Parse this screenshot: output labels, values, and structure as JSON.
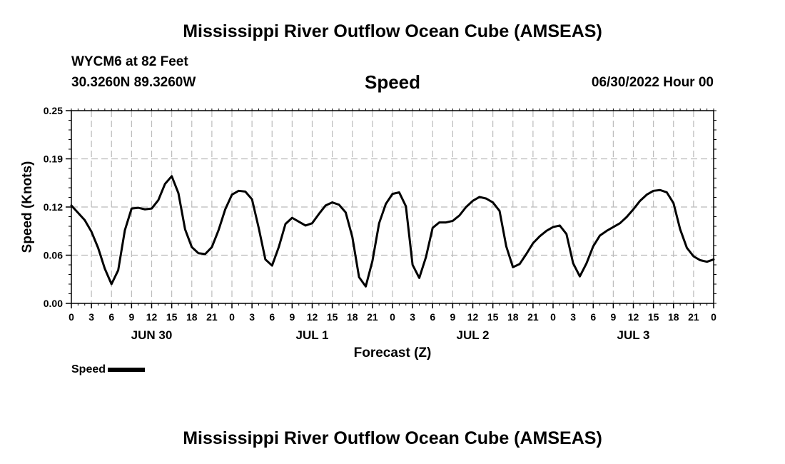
{
  "header": {
    "title": "Mississippi River Outflow Ocean Cube (AMSEAS)",
    "station": "WYCM6 at 82 Feet",
    "coords": "30.3260N  89.3260W",
    "variable": "Speed",
    "date": "06/30/2022 Hour 00"
  },
  "footer": {
    "title": "Mississippi River Outflow Ocean Cube (AMSEAS)"
  },
  "chart_data": {
    "type": "line",
    "xlabel": "Forecast (Z)",
    "ylabel": "Speed (Knots)",
    "ylim": [
      0,
      0.25
    ],
    "y_ticks": [
      "0.00",
      "0.06",
      "0.12",
      "0.19",
      "0.25"
    ],
    "xlim": [
      0,
      96
    ],
    "x_tick_labels": [
      "0",
      "3",
      "6",
      "9",
      "12",
      "15",
      "18",
      "21",
      "0",
      "3",
      "6",
      "9",
      "12",
      "15",
      "18",
      "21",
      "0",
      "3",
      "6",
      "9",
      "12",
      "15",
      "18",
      "21",
      "0",
      "3",
      "6",
      "9",
      "12",
      "15",
      "18",
      "21",
      "0"
    ],
    "day_labels": [
      {
        "label": "JUN 30",
        "hour": 12
      },
      {
        "label": "JUL 1",
        "hour": 36
      },
      {
        "label": "JUL 2",
        "hour": 60
      },
      {
        "label": "JUL 3",
        "hour": 84
      }
    ],
    "grid": true,
    "legend": "bottom-left",
    "series": [
      {
        "name": "Speed",
        "color": "#000000",
        "x": [
          0,
          2,
          3,
          4,
          5,
          6,
          7,
          8,
          9,
          10,
          11,
          12,
          13,
          14,
          15,
          16,
          17,
          18,
          19,
          20,
          21,
          22,
          23,
          24,
          25,
          26,
          27,
          28,
          29,
          30,
          31,
          32,
          33,
          34,
          35,
          36,
          37,
          38,
          39,
          40,
          41,
          42,
          43,
          44,
          45,
          46,
          47,
          48,
          49,
          50,
          51,
          52,
          53,
          54,
          55,
          56,
          57,
          58,
          59,
          60,
          61,
          62,
          63,
          64,
          65,
          66,
          67,
          68,
          69,
          70,
          71,
          72,
          73,
          74,
          75,
          76,
          77,
          78,
          79,
          80,
          81,
          82,
          83,
          84,
          85,
          86,
          87,
          88,
          89,
          90,
          91,
          92,
          93,
          94,
          95,
          96
        ],
        "values": [
          0.127,
          0.108,
          0.093,
          0.072,
          0.045,
          0.025,
          0.043,
          0.095,
          0.123,
          0.124,
          0.122,
          0.123,
          0.134,
          0.155,
          0.165,
          0.143,
          0.096,
          0.073,
          0.065,
          0.064,
          0.073,
          0.095,
          0.122,
          0.141,
          0.146,
          0.145,
          0.135,
          0.098,
          0.057,
          0.049,
          0.073,
          0.103,
          0.111,
          0.106,
          0.101,
          0.104,
          0.116,
          0.127,
          0.131,
          0.128,
          0.118,
          0.086,
          0.034,
          0.022,
          0.055,
          0.104,
          0.129,
          0.142,
          0.144,
          0.126,
          0.05,
          0.033,
          0.06,
          0.098,
          0.105,
          0.105,
          0.107,
          0.114,
          0.125,
          0.133,
          0.138,
          0.136,
          0.131,
          0.12,
          0.074,
          0.047,
          0.051,
          0.064,
          0.078,
          0.087,
          0.094,
          0.099,
          0.101,
          0.09,
          0.052,
          0.035,
          0.052,
          0.074,
          0.088,
          0.094,
          0.099,
          0.104,
          0.112,
          0.122,
          0.133,
          0.141,
          0.146,
          0.147,
          0.144,
          0.13,
          0.096,
          0.072,
          0.061,
          0.056,
          0.054,
          0.057
        ]
      }
    ]
  }
}
